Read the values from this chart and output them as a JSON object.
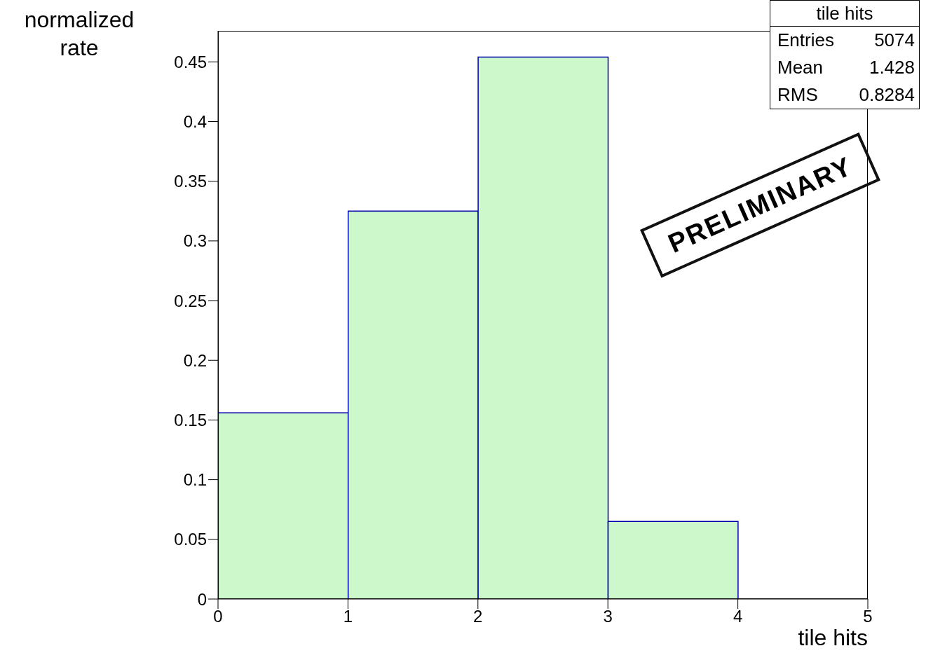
{
  "chart_data": {
    "type": "histogram",
    "xlabel": "tile hits",
    "ylabel": "normalized rate",
    "bins": [
      0,
      1,
      2,
      3,
      4,
      5
    ],
    "values": [
      0.156,
      0.325,
      0.454,
      0.065,
      0
    ],
    "color": "#ccf8cc",
    "xlim": [
      0,
      5
    ],
    "xticks": [
      0,
      1,
      2,
      3,
      4,
      5
    ],
    "ylim": [
      0,
      0.476
    ],
    "yticks": [
      0,
      0.05,
      0.1,
      0.15,
      0.2,
      0.25,
      0.3,
      0.35,
      0.4,
      0.45
    ],
    "grid": false,
    "legend": false,
    "annotations": [
      "tile hits",
      "Entries 5074",
      "Mean 1.428",
      "RMS 0.8284",
      "PRELIMINARY"
    ]
  }
}
